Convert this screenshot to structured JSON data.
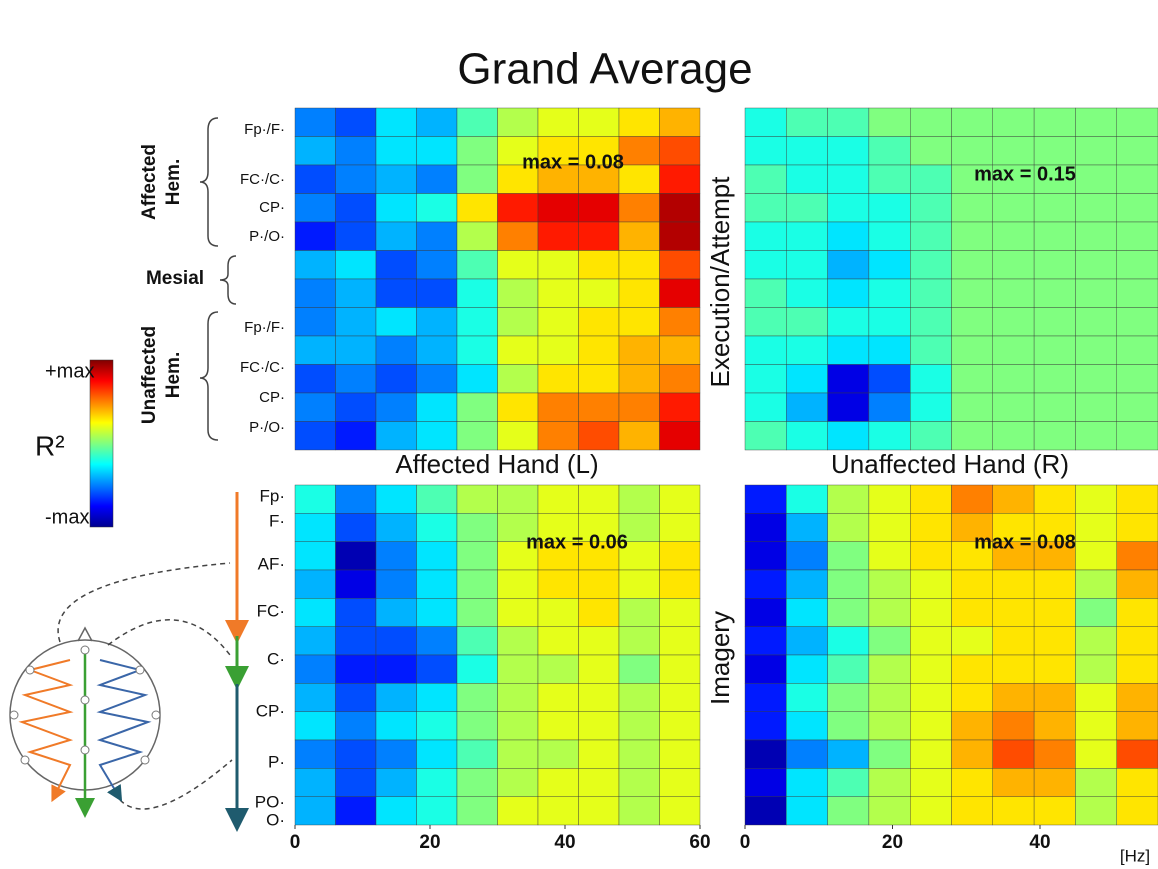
{
  "title": "Grand Average",
  "column_labels": [
    "Affected Hand (L)",
    "Unaffected Hand (R)"
  ],
  "row_labels": [
    "Execution/Attempt",
    "Imagery"
  ],
  "x_unit": "[Hz]",
  "colorbar": {
    "top": "+max",
    "bottom": "-max",
    "label": "R²"
  },
  "hemispheres": {
    "affected": [
      "Affected",
      "Hem."
    ],
    "mesial": "Mesial",
    "unaffected": [
      "Unaffected",
      "Hem."
    ]
  },
  "channels_affected": [
    "Fp·/F·",
    "FC·/C·",
    "CP·",
    "P·/O·"
  ],
  "channels_unaffected": [
    "Fp·/F·",
    "FC·/C·",
    "CP·",
    "P·/O·"
  ],
  "channels_bottom": [
    "Fp·",
    "F·",
    "AF·",
    "FC·",
    "C·",
    "CP·",
    "P·",
    "PO·",
    "O·"
  ],
  "chart_data": [
    {
      "type": "heatmap",
      "annotation": "max = 0.08",
      "xlim": [
        0,
        60
      ],
      "zlim": [
        -1,
        1
      ],
      "values": [
        [
          -0.5,
          -0.6,
          -0.3,
          -0.4,
          -0.1,
          0.1,
          0.2,
          0.2,
          0.3,
          0.4
        ],
        [
          -0.4,
          -0.5,
          -0.3,
          -0.3,
          0.0,
          0.2,
          0.3,
          0.3,
          0.5,
          0.6
        ],
        [
          -0.6,
          -0.5,
          -0.4,
          -0.5,
          0.0,
          0.3,
          0.4,
          0.4,
          0.3,
          0.7
        ],
        [
          -0.5,
          -0.6,
          -0.3,
          -0.2,
          0.3,
          0.7,
          0.8,
          0.8,
          0.5,
          0.9
        ],
        [
          -0.7,
          -0.6,
          -0.4,
          -0.5,
          0.1,
          0.5,
          0.7,
          0.7,
          0.4,
          0.9
        ],
        [
          -0.4,
          -0.3,
          -0.6,
          -0.5,
          -0.1,
          0.2,
          0.2,
          0.3,
          0.3,
          0.6
        ],
        [
          -0.5,
          -0.4,
          -0.6,
          -0.6,
          -0.2,
          0.1,
          0.2,
          0.2,
          0.3,
          0.8
        ],
        [
          -0.5,
          -0.4,
          -0.3,
          -0.4,
          -0.2,
          0.1,
          0.2,
          0.3,
          0.3,
          0.5
        ],
        [
          -0.4,
          -0.4,
          -0.5,
          -0.4,
          -0.2,
          0.2,
          0.2,
          0.3,
          0.4,
          0.4
        ],
        [
          -0.6,
          -0.5,
          -0.6,
          -0.5,
          -0.3,
          0.1,
          0.3,
          0.3,
          0.4,
          0.5
        ],
        [
          -0.5,
          -0.6,
          -0.5,
          -0.3,
          0.0,
          0.3,
          0.5,
          0.5,
          0.5,
          0.7
        ],
        [
          -0.6,
          -0.7,
          -0.4,
          -0.3,
          0.0,
          0.2,
          0.5,
          0.6,
          0.4,
          0.8
        ]
      ]
    },
    {
      "type": "heatmap",
      "annotation": "max = 0.15",
      "xlim": [
        0,
        56
      ],
      "zlim": [
        -1,
        1
      ],
      "values": [
        [
          -0.2,
          -0.1,
          -0.1,
          0.0,
          0.0,
          0.0,
          0.0,
          0.0,
          0.0,
          0.0
        ],
        [
          -0.2,
          -0.2,
          -0.2,
          -0.1,
          0.0,
          0.0,
          0.0,
          0.0,
          0.0,
          0.0
        ],
        [
          -0.1,
          -0.2,
          -0.2,
          -0.1,
          -0.1,
          0.0,
          0.0,
          0.0,
          0.0,
          0.0
        ],
        [
          -0.1,
          -0.1,
          -0.2,
          -0.2,
          -0.1,
          0.0,
          0.0,
          0.0,
          0.0,
          0.0
        ],
        [
          -0.2,
          -0.2,
          -0.3,
          -0.2,
          -0.1,
          0.0,
          0.0,
          0.0,
          0.0,
          0.0
        ],
        [
          -0.2,
          -0.2,
          -0.4,
          -0.3,
          -0.1,
          0.0,
          0.0,
          0.0,
          0.0,
          0.0
        ],
        [
          -0.1,
          -0.2,
          -0.3,
          -0.2,
          -0.1,
          0.0,
          0.0,
          0.0,
          0.0,
          0.0
        ],
        [
          -0.1,
          -0.1,
          -0.2,
          -0.2,
          -0.1,
          0.0,
          0.0,
          0.0,
          0.0,
          0.0
        ],
        [
          -0.2,
          -0.2,
          -0.3,
          -0.3,
          -0.1,
          0.0,
          0.0,
          0.0,
          0.0,
          0.0
        ],
        [
          -0.2,
          -0.3,
          -0.8,
          -0.6,
          -0.2,
          0.0,
          0.0,
          0.0,
          0.0,
          0.0
        ],
        [
          -0.2,
          -0.4,
          -0.8,
          -0.5,
          -0.2,
          0.0,
          0.0,
          0.0,
          0.0,
          0.0
        ],
        [
          -0.1,
          -0.2,
          -0.3,
          -0.2,
          -0.1,
          0.0,
          0.0,
          0.0,
          0.0,
          0.0
        ]
      ]
    },
    {
      "type": "heatmap",
      "annotation": "max = 0.06",
      "xlim": [
        0,
        60
      ],
      "zlim": [
        -1,
        1
      ],
      "xticks": [
        0,
        20,
        40,
        60
      ],
      "values": [
        [
          -0.2,
          -0.5,
          -0.3,
          -0.1,
          0.1,
          0.1,
          0.2,
          0.2,
          0.1,
          0.2
        ],
        [
          -0.3,
          -0.6,
          -0.4,
          -0.2,
          0.0,
          0.1,
          0.2,
          0.2,
          0.1,
          0.2
        ],
        [
          -0.3,
          -0.9,
          -0.5,
          -0.3,
          0.0,
          0.2,
          0.3,
          0.3,
          0.2,
          0.3
        ],
        [
          -0.4,
          -0.8,
          -0.5,
          -0.3,
          0.0,
          0.2,
          0.3,
          0.3,
          0.2,
          0.3
        ],
        [
          -0.3,
          -0.6,
          -0.4,
          -0.3,
          0.0,
          0.2,
          0.2,
          0.3,
          0.1,
          0.2
        ],
        [
          -0.4,
          -0.6,
          -0.6,
          -0.5,
          -0.1,
          0.1,
          0.2,
          0.2,
          0.1,
          0.2
        ],
        [
          -0.5,
          -0.7,
          -0.7,
          -0.6,
          -0.2,
          0.1,
          0.1,
          0.2,
          0.0,
          0.2
        ],
        [
          -0.4,
          -0.6,
          -0.4,
          -0.3,
          0.0,
          0.1,
          0.2,
          0.2,
          0.1,
          0.2
        ],
        [
          -0.3,
          -0.5,
          -0.3,
          -0.2,
          0.0,
          0.1,
          0.2,
          0.2,
          0.1,
          0.2
        ],
        [
          -0.5,
          -0.6,
          -0.5,
          -0.3,
          -0.1,
          0.1,
          0.1,
          0.2,
          0.1,
          0.2
        ],
        [
          -0.4,
          -0.6,
          -0.4,
          -0.2,
          0.0,
          0.1,
          0.2,
          0.2,
          0.1,
          0.2
        ],
        [
          -0.4,
          -0.7,
          -0.3,
          -0.2,
          0.0,
          0.2,
          0.2,
          0.2,
          0.1,
          0.2
        ]
      ]
    },
    {
      "type": "heatmap",
      "annotation": "max = 0.08",
      "xlim": [
        0,
        56
      ],
      "zlim": [
        -1,
        1
      ],
      "xticks": [
        0,
        20,
        40
      ],
      "values": [
        [
          -0.7,
          -0.2,
          0.1,
          0.2,
          0.3,
          0.5,
          0.4,
          0.3,
          0.2,
          0.3
        ],
        [
          -0.8,
          -0.4,
          0.1,
          0.2,
          0.3,
          0.4,
          0.3,
          0.3,
          0.2,
          0.3
        ],
        [
          -0.8,
          -0.5,
          0.0,
          0.2,
          0.3,
          0.3,
          0.4,
          0.4,
          0.2,
          0.5
        ],
        [
          -0.7,
          -0.4,
          0.0,
          0.1,
          0.2,
          0.3,
          0.3,
          0.3,
          0.1,
          0.4
        ],
        [
          -0.8,
          -0.3,
          0.0,
          0.1,
          0.2,
          0.3,
          0.3,
          0.3,
          0.0,
          0.3
        ],
        [
          -0.7,
          -0.4,
          -0.2,
          0.0,
          0.2,
          0.2,
          0.3,
          0.3,
          0.1,
          0.3
        ],
        [
          -0.8,
          -0.3,
          -0.1,
          0.1,
          0.2,
          0.3,
          0.3,
          0.3,
          0.1,
          0.3
        ],
        [
          -0.7,
          -0.2,
          0.0,
          0.1,
          0.2,
          0.3,
          0.4,
          0.4,
          0.2,
          0.4
        ],
        [
          -0.7,
          -0.3,
          0.0,
          0.1,
          0.2,
          0.4,
          0.5,
          0.4,
          0.2,
          0.4
        ],
        [
          -0.9,
          -0.5,
          -0.4,
          0.0,
          0.2,
          0.4,
          0.6,
          0.5,
          0.2,
          0.6
        ],
        [
          -0.8,
          -0.3,
          -0.1,
          0.1,
          0.2,
          0.3,
          0.4,
          0.4,
          0.1,
          0.3
        ],
        [
          -0.9,
          -0.3,
          0.0,
          0.1,
          0.2,
          0.3,
          0.3,
          0.3,
          0.1,
          0.3
        ]
      ]
    }
  ]
}
